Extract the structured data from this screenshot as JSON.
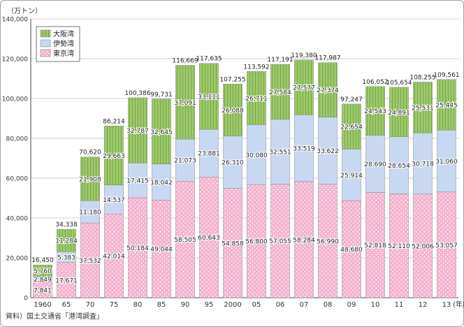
{
  "chart_data": {
    "type": "bar",
    "stacked": true,
    "unit_label": "（万トン）",
    "x_suffix": "(年度)",
    "categories": [
      "1960",
      "65",
      "70",
      "75",
      "80",
      "85",
      "90",
      "95",
      "2000",
      "05",
      "06",
      "07",
      "08",
      "09",
      "10",
      "11",
      "12",
      "13"
    ],
    "series": [
      {
        "name": "東京湾",
        "color": "#f4b3cf",
        "values": [
          7841,
          17671,
          37532,
          42014,
          50184,
          49044,
          58505,
          60643,
          54858,
          56800,
          57055,
          58284,
          56990,
          48680,
          52818,
          52110,
          52006,
          53057
        ]
      },
      {
        "name": "伊勢湾",
        "color": "#c8d8f0",
        "values": [
          2849,
          5383,
          11180,
          14537,
          17415,
          18042,
          21073,
          23881,
          26310,
          30080,
          32551,
          33519,
          33622,
          25914,
          28690,
          28654,
          30718,
          31060
        ]
      },
      {
        "name": "大阪湾",
        "color": "#9dc96a",
        "values": [
          5760,
          11284,
          21908,
          29663,
          32787,
          32645,
          37091,
          33111,
          26088,
          26711,
          27584,
          27577,
          27374,
          22654,
          24543,
          24891,
          25531,
          25445
        ]
      }
    ],
    "totals": [
      16450,
      34338,
      70620,
      86214,
      100386,
      99731,
      116669,
      117635,
      107255,
      113592,
      117191,
      119380,
      117987,
      97247,
      106052,
      105654,
      108255,
      109561
    ],
    "ylim": [
      0,
      140000
    ],
    "yticks": [
      0,
      20000,
      40000,
      60000,
      80000,
      100000,
      120000,
      140000
    ],
    "grid": true,
    "legend_position": "top-left"
  },
  "source_text": "資料）国土交通省「港湾調査」"
}
